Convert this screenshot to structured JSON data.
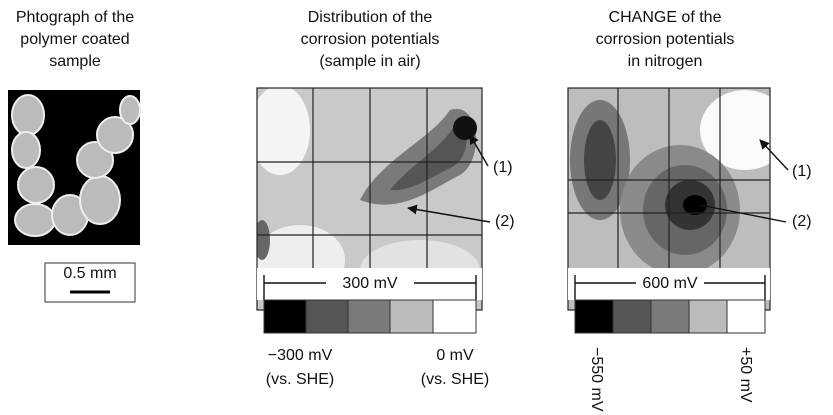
{
  "photo_panel": {
    "title_lines": [
      "Phtograph of the",
      "polymer coated",
      "sample"
    ],
    "scale_bar": "0.5 mm"
  },
  "air_panel": {
    "title_lines": [
      "Distribution of the",
      "corrosion potentials",
      "(sample in air)"
    ],
    "markers": [
      "(1)",
      "(2)"
    ],
    "range": "300 mV",
    "scale_min": [
      "−300 mV",
      "(vs. SHE)"
    ],
    "scale_max": [
      "0 mV",
      "(vs. SHE)"
    ]
  },
  "nitrogen_panel": {
    "title_lines": [
      "CHANGE of the",
      "corrosion potentials",
      "in nitrogen"
    ],
    "markers": [
      "(1)",
      "(2)"
    ],
    "range": "600 mV",
    "scale_min": "−550 mV",
    "scale_max": "+50 mV"
  }
}
